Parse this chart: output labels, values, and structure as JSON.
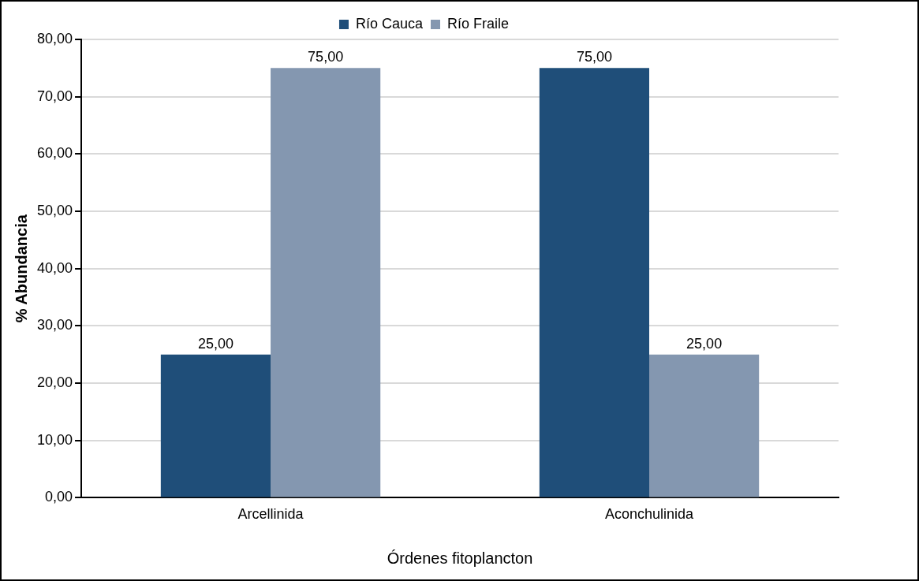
{
  "chart_data": {
    "type": "bar",
    "xlabel": "Órdenes fitoplancton",
    "ylabel": "% Abundancia",
    "categories": [
      "Arcellinida",
      "Aconchulinida"
    ],
    "series": [
      {
        "name": "Río Cauca",
        "color": "#1f4e79",
        "values": [
          25,
          75
        ],
        "value_labels": [
          "25,00",
          "75,00"
        ]
      },
      {
        "name": "Río Fraile",
        "color": "#8497b0",
        "values": [
          75,
          25
        ],
        "value_labels": [
          "75,00",
          "25,00"
        ]
      }
    ],
    "ylim": [
      0,
      80
    ],
    "yticks": [
      {
        "value": 0,
        "label": "0,00"
      },
      {
        "value": 10,
        "label": "10,00"
      },
      {
        "value": 20,
        "label": "20,00"
      },
      {
        "value": 30,
        "label": "30,00"
      },
      {
        "value": 40,
        "label": "40,00"
      },
      {
        "value": 50,
        "label": "50,00"
      },
      {
        "value": 60,
        "label": "60,00"
      },
      {
        "value": 70,
        "label": "70,00"
      },
      {
        "value": 80,
        "label": "80,00"
      }
    ],
    "grid": "y",
    "legend": "top"
  }
}
